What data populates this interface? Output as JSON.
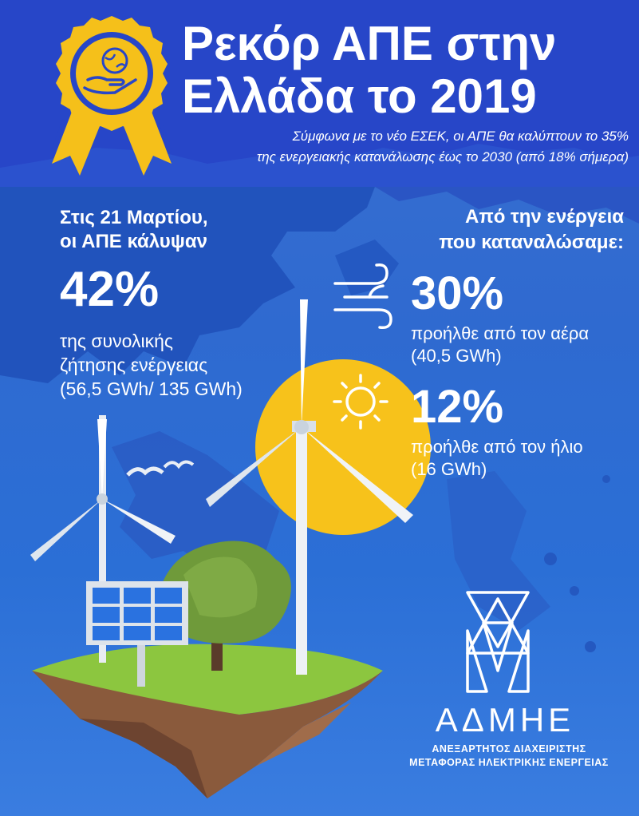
{
  "header": {
    "title_line1": "Ρεκόρ ΑΠΕ στην",
    "title_line2": "Ελλάδα το 2019",
    "subtitle_line1": "Σύμφωνα με το νέο ΕΣΕΚ, οι ΑΠΕ θα καλύπτουν το 35%",
    "subtitle_line2": "της ενεργειακής κατανάλωσης έως το 2030 (από 18% σήμερα)"
  },
  "left": {
    "intro_line1": "Στις 21 Μαρτίου,",
    "intro_line2": "οι ΑΠΕ κάλυψαν",
    "percent": "42%",
    "desc_line1": "της συνολικής",
    "desc_line2": "ζήτησης ενέργειας",
    "desc_line3": "(56,5 GWh/ 135 GWh)"
  },
  "right": {
    "intro_line1": "Από την ενέργεια",
    "intro_line2": "που καταναλώσαμε:",
    "wind": {
      "icon": "wind-icon",
      "percent": "30%",
      "source": "προήλθε από τον αέρα",
      "value": "(40,5 GWh)"
    },
    "solar": {
      "icon": "sun-icon",
      "percent": "12%",
      "source": "προήλθε από τον ήλιο",
      "value": "(16 GWh)"
    }
  },
  "logo": {
    "name": "ΑΔΜΗΕ",
    "desc_line1": "ΑΝΕΞΑΡΤΗΤΟΣ ΔΙΑΧΕΙΡΙΣΤΗΣ",
    "desc_line2": "ΜΕΤΑΦΟΡΑΣ ΗΛΕΚΤΡΙΚΗΣ ΕΝΕΡΓΕΙΑΣ"
  },
  "colors": {
    "header_blue": "#2746c8",
    "background_blue": "#2f6ad0",
    "map_blue": "#1f4fb8",
    "sun_yellow": "#f7c21b",
    "badge_gold": "#f5c01a",
    "grass_green": "#8cc63f"
  }
}
